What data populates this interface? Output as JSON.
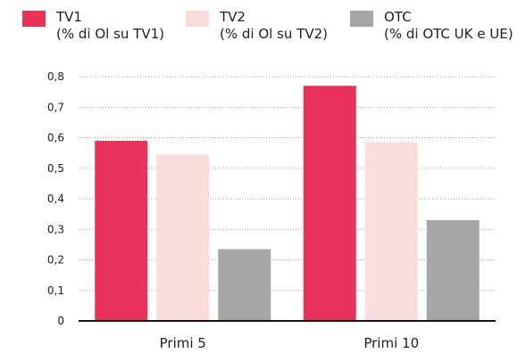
{
  "chart_data": {
    "type": "bar",
    "categories": [
      "Primi 5",
      "Primi 10"
    ],
    "series": [
      {
        "name": "TV1",
        "note": "(% di Ol su TV1)",
        "color": "#e8325a",
        "values": [
          0.59,
          0.77
        ]
      },
      {
        "name": "TV2",
        "note": "(% di Ol su TV2)",
        "color": "#fadcda",
        "values": [
          0.545,
          0.585
        ]
      },
      {
        "name": "OTC",
        "note": "(% di OTC UK e UE)",
        "color": "#a6a6a6",
        "values": [
          0.235,
          0.33
        ]
      }
    ],
    "yticks": [
      "0",
      "0,1",
      "0,2",
      "0,3",
      "0,4",
      "0,5",
      "0,6",
      "0,7",
      "0,8"
    ],
    "ylim": [
      0,
      0.8
    ],
    "grid": true,
    "grid_style": "dotted",
    "legend_position": "top",
    "title": "",
    "xlabel": "",
    "ylabel": ""
  }
}
